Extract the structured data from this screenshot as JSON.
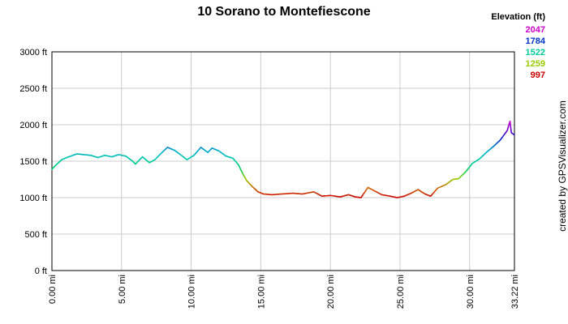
{
  "chart_data": {
    "type": "line",
    "title": "10 Sorano to Montefiescone",
    "credit": "created by GPSVisualizer.com",
    "xunit": "mi",
    "yunit": "ft",
    "xlim": [
      0,
      33.22
    ],
    "ylim": [
      0,
      3000
    ],
    "xticks": [
      "0.00 mi",
      "5.00 mi",
      "10.00 mi",
      "15.00 mi",
      "20.00 mi",
      "25.00 mi",
      "30.00 mi",
      "33.22 mi"
    ],
    "xtick_values": [
      0,
      5,
      10,
      15,
      20,
      25,
      30,
      33.22
    ],
    "yticks": [
      "0 ft",
      "500 ft",
      "1000 ft",
      "1500 ft",
      "2000 ft",
      "2500 ft",
      "3000 ft"
    ],
    "ytick_values": [
      0,
      500,
      1000,
      1500,
      2000,
      2500,
      3000
    ],
    "grid": true,
    "legend": {
      "title": "Elevation (ft)",
      "position": "top-right",
      "entries": [
        {
          "label": "2047",
          "color": "#cc00cc"
        },
        {
          "label": "1784",
          "color": "#0033cc"
        },
        {
          "label": "1522",
          "color": "#00cc99"
        },
        {
          "label": "1259",
          "color": "#99cc00"
        },
        {
          "label": "997",
          "color": "#cc0000"
        }
      ]
    },
    "color_scale": {
      "min": 997,
      "max": 2047
    },
    "series": [
      {
        "x": [
          0,
          0.3,
          0.7,
          1.2,
          1.8,
          2.3,
          2.8,
          3.3,
          3.8,
          4.3,
          4.8,
          5.3,
          5.8,
          6.0,
          6.5,
          7.0,
          7.4,
          7.8,
          8.3,
          8.8,
          9.3,
          9.7,
          10.2,
          10.7,
          11.2,
          11.5,
          12.0,
          12.5,
          13.0,
          13.4,
          13.7,
          14.0,
          14.4,
          14.8,
          15.2,
          15.8,
          16.5,
          17.3,
          18.0,
          18.8,
          19.4,
          20.0,
          20.7,
          21.3,
          21.8,
          22.2,
          22.7,
          23.2,
          23.7,
          24.3,
          24.8,
          25.3,
          25.8,
          26.3,
          26.8,
          27.2,
          27.7,
          28.3,
          28.8,
          29.2,
          29.7,
          30.2,
          30.7,
          31.2,
          31.7,
          32.2,
          32.7,
          32.9,
          33.0,
          33.22
        ],
        "y": [
          1390,
          1450,
          1520,
          1560,
          1600,
          1590,
          1580,
          1550,
          1580,
          1560,
          1590,
          1570,
          1500,
          1460,
          1560,
          1480,
          1520,
          1600,
          1690,
          1650,
          1580,
          1520,
          1580,
          1690,
          1620,
          1680,
          1640,
          1570,
          1540,
          1450,
          1330,
          1230,
          1150,
          1080,
          1050,
          1040,
          1050,
          1060,
          1050,
          1080,
          1020,
          1030,
          1010,
          1040,
          1010,
          1000,
          1140,
          1090,
          1040,
          1020,
          1000,
          1020,
          1060,
          1110,
          1050,
          1020,
          1130,
          1180,
          1250,
          1260,
          1350,
          1470,
          1530,
          1620,
          1700,
          1790,
          1920,
          2047,
          1890,
          1860
        ]
      }
    ]
  }
}
